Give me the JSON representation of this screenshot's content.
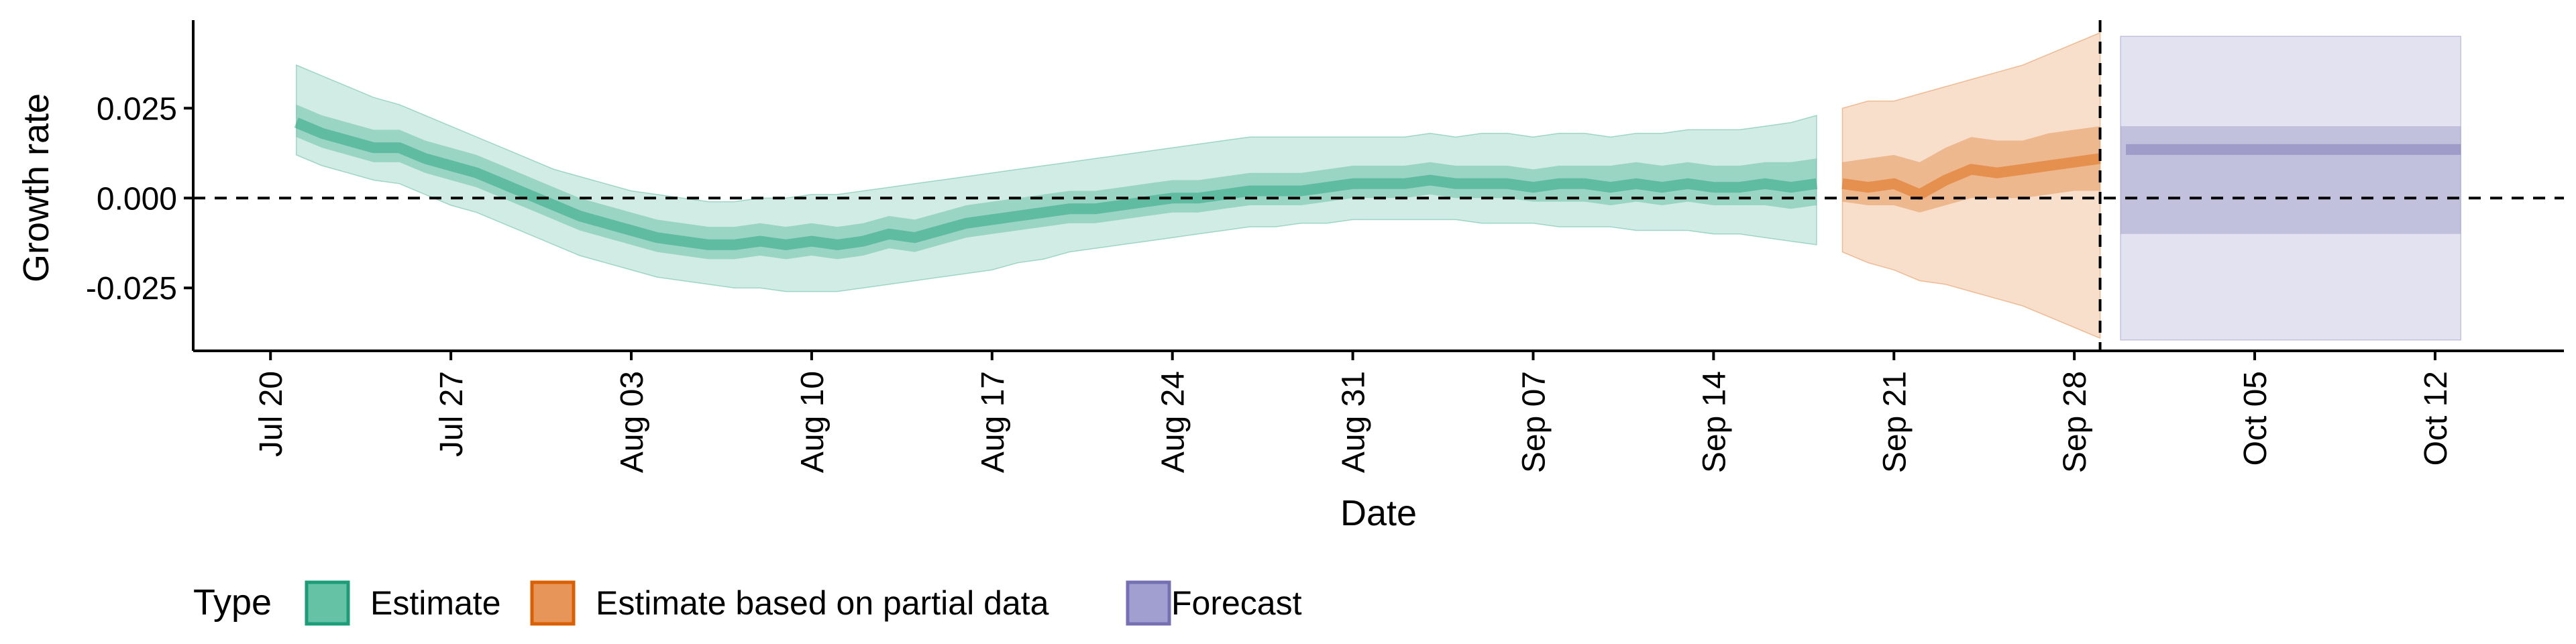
{
  "chart_data": {
    "type": "area",
    "title": "",
    "xlabel": "Date",
    "ylabel": "Growth rate",
    "x_start": "2020-07-20",
    "xlim": [
      "2020-07-17",
      "2020-10-17"
    ],
    "ylim": [
      -0.0425,
      0.0495
    ],
    "y_ticks": [
      -0.025,
      0.0,
      0.025
    ],
    "y_tick_labels": [
      "-0.025",
      "0.000",
      "0.025"
    ],
    "x_ticks": [
      "2020-07-20",
      "2020-07-27",
      "2020-08-03",
      "2020-08-10",
      "2020-08-17",
      "2020-08-24",
      "2020-08-31",
      "2020-09-07",
      "2020-09-14",
      "2020-09-21",
      "2020-09-28",
      "2020-10-05",
      "2020-10-12"
    ],
    "x_tick_labels": [
      "Jul 20",
      "Jul 27",
      "Aug 03",
      "Aug 10",
      "Aug 17",
      "Aug 24",
      "Aug 31",
      "Sep 07",
      "Sep 14",
      "Sep 21",
      "Sep 28",
      "Oct 05",
      "Oct 12"
    ],
    "reference_lines": {
      "horizontal_y": 0.0,
      "vertical_date": "2020-09-29",
      "style": "dashed"
    },
    "grid": false,
    "legend": {
      "title": "Type",
      "position": "bottom-left",
      "entries": [
        {
          "label": "Estimate",
          "fill": "#66c2a5",
          "border": "#1b9e77"
        },
        {
          "label": "Estimate based on partial data",
          "fill": "#e8955a",
          "border": "#d95f02"
        },
        {
          "label": "Forecast",
          "fill": "#a19fd0",
          "border": "#7570b3"
        }
      ]
    },
    "series": [
      {
        "name": "Estimate",
        "color": "#1b9e77",
        "x": [
          "2020-07-21",
          "2020-07-22",
          "2020-07-23",
          "2020-07-24",
          "2020-07-25",
          "2020-07-26",
          "2020-07-27",
          "2020-07-28",
          "2020-07-29",
          "2020-07-30",
          "2020-07-31",
          "2020-08-01",
          "2020-08-02",
          "2020-08-03",
          "2020-08-04",
          "2020-08-05",
          "2020-08-06",
          "2020-08-07",
          "2020-08-08",
          "2020-08-09",
          "2020-08-10",
          "2020-08-11",
          "2020-08-12",
          "2020-08-13",
          "2020-08-14",
          "2020-08-15",
          "2020-08-16",
          "2020-08-17",
          "2020-08-18",
          "2020-08-19",
          "2020-08-20",
          "2020-08-21",
          "2020-08-22",
          "2020-08-23",
          "2020-08-24",
          "2020-08-25",
          "2020-08-26",
          "2020-08-27",
          "2020-08-28",
          "2020-08-29",
          "2020-08-30",
          "2020-08-31",
          "2020-09-01",
          "2020-09-02",
          "2020-09-03",
          "2020-09-04",
          "2020-09-05",
          "2020-09-06",
          "2020-09-07",
          "2020-09-08",
          "2020-09-09",
          "2020-09-10",
          "2020-09-11",
          "2020-09-12",
          "2020-09-13",
          "2020-09-14",
          "2020-09-15",
          "2020-09-16",
          "2020-09-17",
          "2020-09-18"
        ],
        "median": [
          0.021,
          0.018,
          0.016,
          0.014,
          0.014,
          0.011,
          0.009,
          0.007,
          0.004,
          0.001,
          -0.002,
          -0.005,
          -0.007,
          -0.009,
          -0.011,
          -0.012,
          -0.013,
          -0.013,
          -0.012,
          -0.013,
          -0.012,
          -0.013,
          -0.012,
          -0.01,
          -0.011,
          -0.009,
          -0.007,
          -0.006,
          -0.005,
          -0.004,
          -0.003,
          -0.003,
          -0.002,
          -0.001,
          0.0,
          0.0,
          0.001,
          0.002,
          0.002,
          0.002,
          0.003,
          0.004,
          0.004,
          0.004,
          0.005,
          0.004,
          0.004,
          0.004,
          0.003,
          0.004,
          0.004,
          0.003,
          0.004,
          0.003,
          0.004,
          0.003,
          0.003,
          0.004,
          0.003,
          0.004
        ],
        "lower_50": [
          0.017,
          0.014,
          0.012,
          0.01,
          0.01,
          0.007,
          0.005,
          0.003,
          0.0,
          -0.003,
          -0.006,
          -0.009,
          -0.011,
          -0.013,
          -0.015,
          -0.016,
          -0.017,
          -0.017,
          -0.016,
          -0.017,
          -0.016,
          -0.017,
          -0.016,
          -0.014,
          -0.015,
          -0.013,
          -0.011,
          -0.01,
          -0.009,
          -0.008,
          -0.007,
          -0.007,
          -0.006,
          -0.005,
          -0.004,
          -0.004,
          -0.003,
          -0.002,
          -0.002,
          -0.002,
          -0.001,
          0.0,
          0.0,
          0.0,
          0.001,
          0.0,
          0.0,
          0.0,
          -0.001,
          -0.001,
          -0.001,
          -0.002,
          -0.001,
          -0.002,
          -0.001,
          -0.002,
          -0.002,
          -0.002,
          -0.003,
          -0.002
        ],
        "upper_50": [
          0.026,
          0.023,
          0.021,
          0.019,
          0.019,
          0.016,
          0.014,
          0.012,
          0.009,
          0.006,
          0.003,
          0.0,
          -0.002,
          -0.004,
          -0.006,
          -0.007,
          -0.008,
          -0.008,
          -0.007,
          -0.008,
          -0.007,
          -0.008,
          -0.007,
          -0.005,
          -0.006,
          -0.004,
          -0.002,
          -0.001,
          0.0,
          0.001,
          0.002,
          0.002,
          0.003,
          0.004,
          0.005,
          0.005,
          0.006,
          0.007,
          0.007,
          0.007,
          0.008,
          0.009,
          0.009,
          0.009,
          0.01,
          0.009,
          0.009,
          0.009,
          0.008,
          0.009,
          0.009,
          0.009,
          0.01,
          0.009,
          0.01,
          0.009,
          0.009,
          0.01,
          0.01,
          0.011
        ],
        "lower_90": [
          0.012,
          0.009,
          0.007,
          0.005,
          0.004,
          0.001,
          -0.002,
          -0.004,
          -0.007,
          -0.01,
          -0.013,
          -0.016,
          -0.018,
          -0.02,
          -0.022,
          -0.023,
          -0.024,
          -0.025,
          -0.025,
          -0.026,
          -0.026,
          -0.026,
          -0.025,
          -0.024,
          -0.023,
          -0.022,
          -0.021,
          -0.02,
          -0.018,
          -0.017,
          -0.015,
          -0.014,
          -0.013,
          -0.012,
          -0.011,
          -0.01,
          -0.009,
          -0.008,
          -0.008,
          -0.007,
          -0.007,
          -0.006,
          -0.006,
          -0.006,
          -0.006,
          -0.006,
          -0.007,
          -0.007,
          -0.007,
          -0.008,
          -0.008,
          -0.008,
          -0.009,
          -0.009,
          -0.009,
          -0.01,
          -0.01,
          -0.011,
          -0.012,
          -0.013
        ],
        "upper_90": [
          0.037,
          0.034,
          0.031,
          0.028,
          0.026,
          0.023,
          0.02,
          0.017,
          0.014,
          0.011,
          0.008,
          0.006,
          0.004,
          0.002,
          0.001,
          0.0,
          -0.001,
          -0.001,
          0.0,
          0.0,
          0.001,
          0.001,
          0.002,
          0.003,
          0.004,
          0.005,
          0.006,
          0.007,
          0.008,
          0.009,
          0.01,
          0.011,
          0.012,
          0.013,
          0.014,
          0.015,
          0.016,
          0.017,
          0.017,
          0.017,
          0.017,
          0.017,
          0.017,
          0.017,
          0.018,
          0.017,
          0.018,
          0.018,
          0.017,
          0.018,
          0.018,
          0.017,
          0.018,
          0.018,
          0.019,
          0.019,
          0.019,
          0.02,
          0.021,
          0.023
        ]
      },
      {
        "name": "Estimate based on partial data",
        "color": "#d95f02",
        "x": [
          "2020-09-19",
          "2020-09-20",
          "2020-09-21",
          "2020-09-22",
          "2020-09-23",
          "2020-09-24",
          "2020-09-25",
          "2020-09-26",
          "2020-09-27",
          "2020-09-28",
          "2020-09-29"
        ],
        "median": [
          0.004,
          0.003,
          0.004,
          0.001,
          0.005,
          0.008,
          0.007,
          0.008,
          0.009,
          0.01,
          0.011
        ],
        "lower_50": [
          -0.001,
          -0.002,
          -0.002,
          -0.004,
          -0.002,
          0.0,
          0.0,
          0.0,
          0.001,
          0.002,
          0.002
        ],
        "upper_50": [
          0.01,
          0.011,
          0.012,
          0.01,
          0.014,
          0.017,
          0.016,
          0.016,
          0.018,
          0.019,
          0.02
        ],
        "lower_90": [
          -0.015,
          -0.018,
          -0.02,
          -0.023,
          -0.024,
          -0.026,
          -0.028,
          -0.03,
          -0.033,
          -0.036,
          -0.039
        ],
        "upper_90": [
          0.025,
          0.027,
          0.027,
          0.029,
          0.031,
          0.033,
          0.035,
          0.037,
          0.04,
          0.043,
          0.046
        ]
      },
      {
        "name": "Forecast",
        "color": "#7570b3",
        "x": [
          "2020-09-30",
          "2020-10-13"
        ],
        "median": [
          0.0135,
          0.0135
        ],
        "lower_50": [
          -0.01,
          -0.01
        ],
        "upper_50": [
          0.02,
          0.02
        ],
        "lower_90": [
          -0.0395,
          -0.0395
        ],
        "upper_90": [
          0.045,
          0.045
        ]
      }
    ]
  }
}
